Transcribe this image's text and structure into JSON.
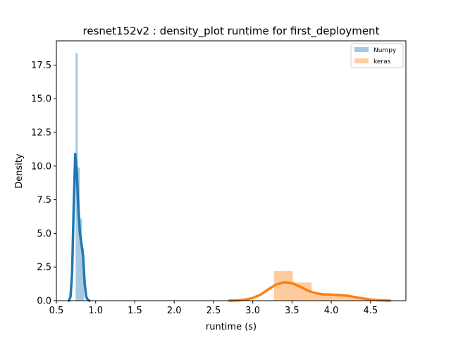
{
  "chart_data": {
    "type": "histogram+kde",
    "title": "resnet152v2 : density_plot runtime  for first_deployment",
    "xlabel": "runtime (s)",
    "ylabel": "Density",
    "xlim": [
      0.5,
      4.95
    ],
    "ylim": [
      0,
      19.3
    ],
    "xticks": [
      0.5,
      1.0,
      1.5,
      2.0,
      2.5,
      3.0,
      3.5,
      4.0,
      4.5
    ],
    "xtick_labels": [
      "0.5",
      "1.0",
      "1.5",
      "2.0",
      "2.5",
      "3.0",
      "3.5",
      "4.0",
      "4.5"
    ],
    "yticks": [
      0.0,
      2.5,
      5.0,
      7.5,
      10.0,
      12.5,
      15.0,
      17.5
    ],
    "ytick_labels": [
      "0.0",
      "2.5",
      "5.0",
      "7.5",
      "10.0",
      "12.5",
      "15.0",
      "17.5"
    ],
    "grid": false,
    "legend_position": "top-right",
    "series": [
      {
        "name": "Numpy",
        "color": "#1f77b4",
        "histogram": {
          "bins": [
            {
              "x0": 0.745,
              "x1": 0.772,
              "density": 18.4
            },
            {
              "x0": 0.772,
              "x1": 0.799,
              "density": 9.9
            },
            {
              "x0": 0.799,
              "x1": 0.826,
              "density": 6.1
            },
            {
              "x0": 0.826,
              "x1": 0.853,
              "density": 3.9
            }
          ]
        },
        "kde": {
          "x": [
            0.66,
            0.68,
            0.7,
            0.72,
            0.74,
            0.76,
            0.78,
            0.8,
            0.82,
            0.84,
            0.86,
            0.88,
            0.9,
            0.92
          ],
          "y": [
            0.0,
            0.3,
            2.0,
            6.8,
            10.9,
            9.6,
            6.8,
            5.0,
            4.2,
            3.3,
            1.3,
            0.3,
            0.05,
            0.0
          ]
        }
      },
      {
        "name": "keras",
        "color": "#ff7f0e",
        "histogram": {
          "bins": [
            {
              "x0": 3.27,
              "x1": 3.51,
              "density": 2.2
            },
            {
              "x0": 3.51,
              "x1": 3.75,
              "density": 1.35
            },
            {
              "x0": 3.75,
              "x1": 3.99,
              "density": 0.45
            },
            {
              "x0": 3.99,
              "x1": 4.23,
              "density": 0.45
            },
            {
              "x0": 4.23,
              "x1": 4.47,
              "density": 0.22
            }
          ]
        },
        "kde": {
          "x": [
            2.7,
            2.8,
            2.9,
            3.0,
            3.1,
            3.2,
            3.3,
            3.4,
            3.5,
            3.6,
            3.7,
            3.8,
            3.9,
            4.0,
            4.1,
            4.2,
            4.3,
            4.4,
            4.5,
            4.6,
            4.7,
            4.75
          ],
          "y": [
            0.0,
            0.02,
            0.07,
            0.2,
            0.45,
            0.85,
            1.2,
            1.37,
            1.3,
            1.05,
            0.75,
            0.55,
            0.47,
            0.45,
            0.42,
            0.37,
            0.27,
            0.17,
            0.08,
            0.03,
            0.01,
            0.0
          ]
        }
      }
    ]
  }
}
